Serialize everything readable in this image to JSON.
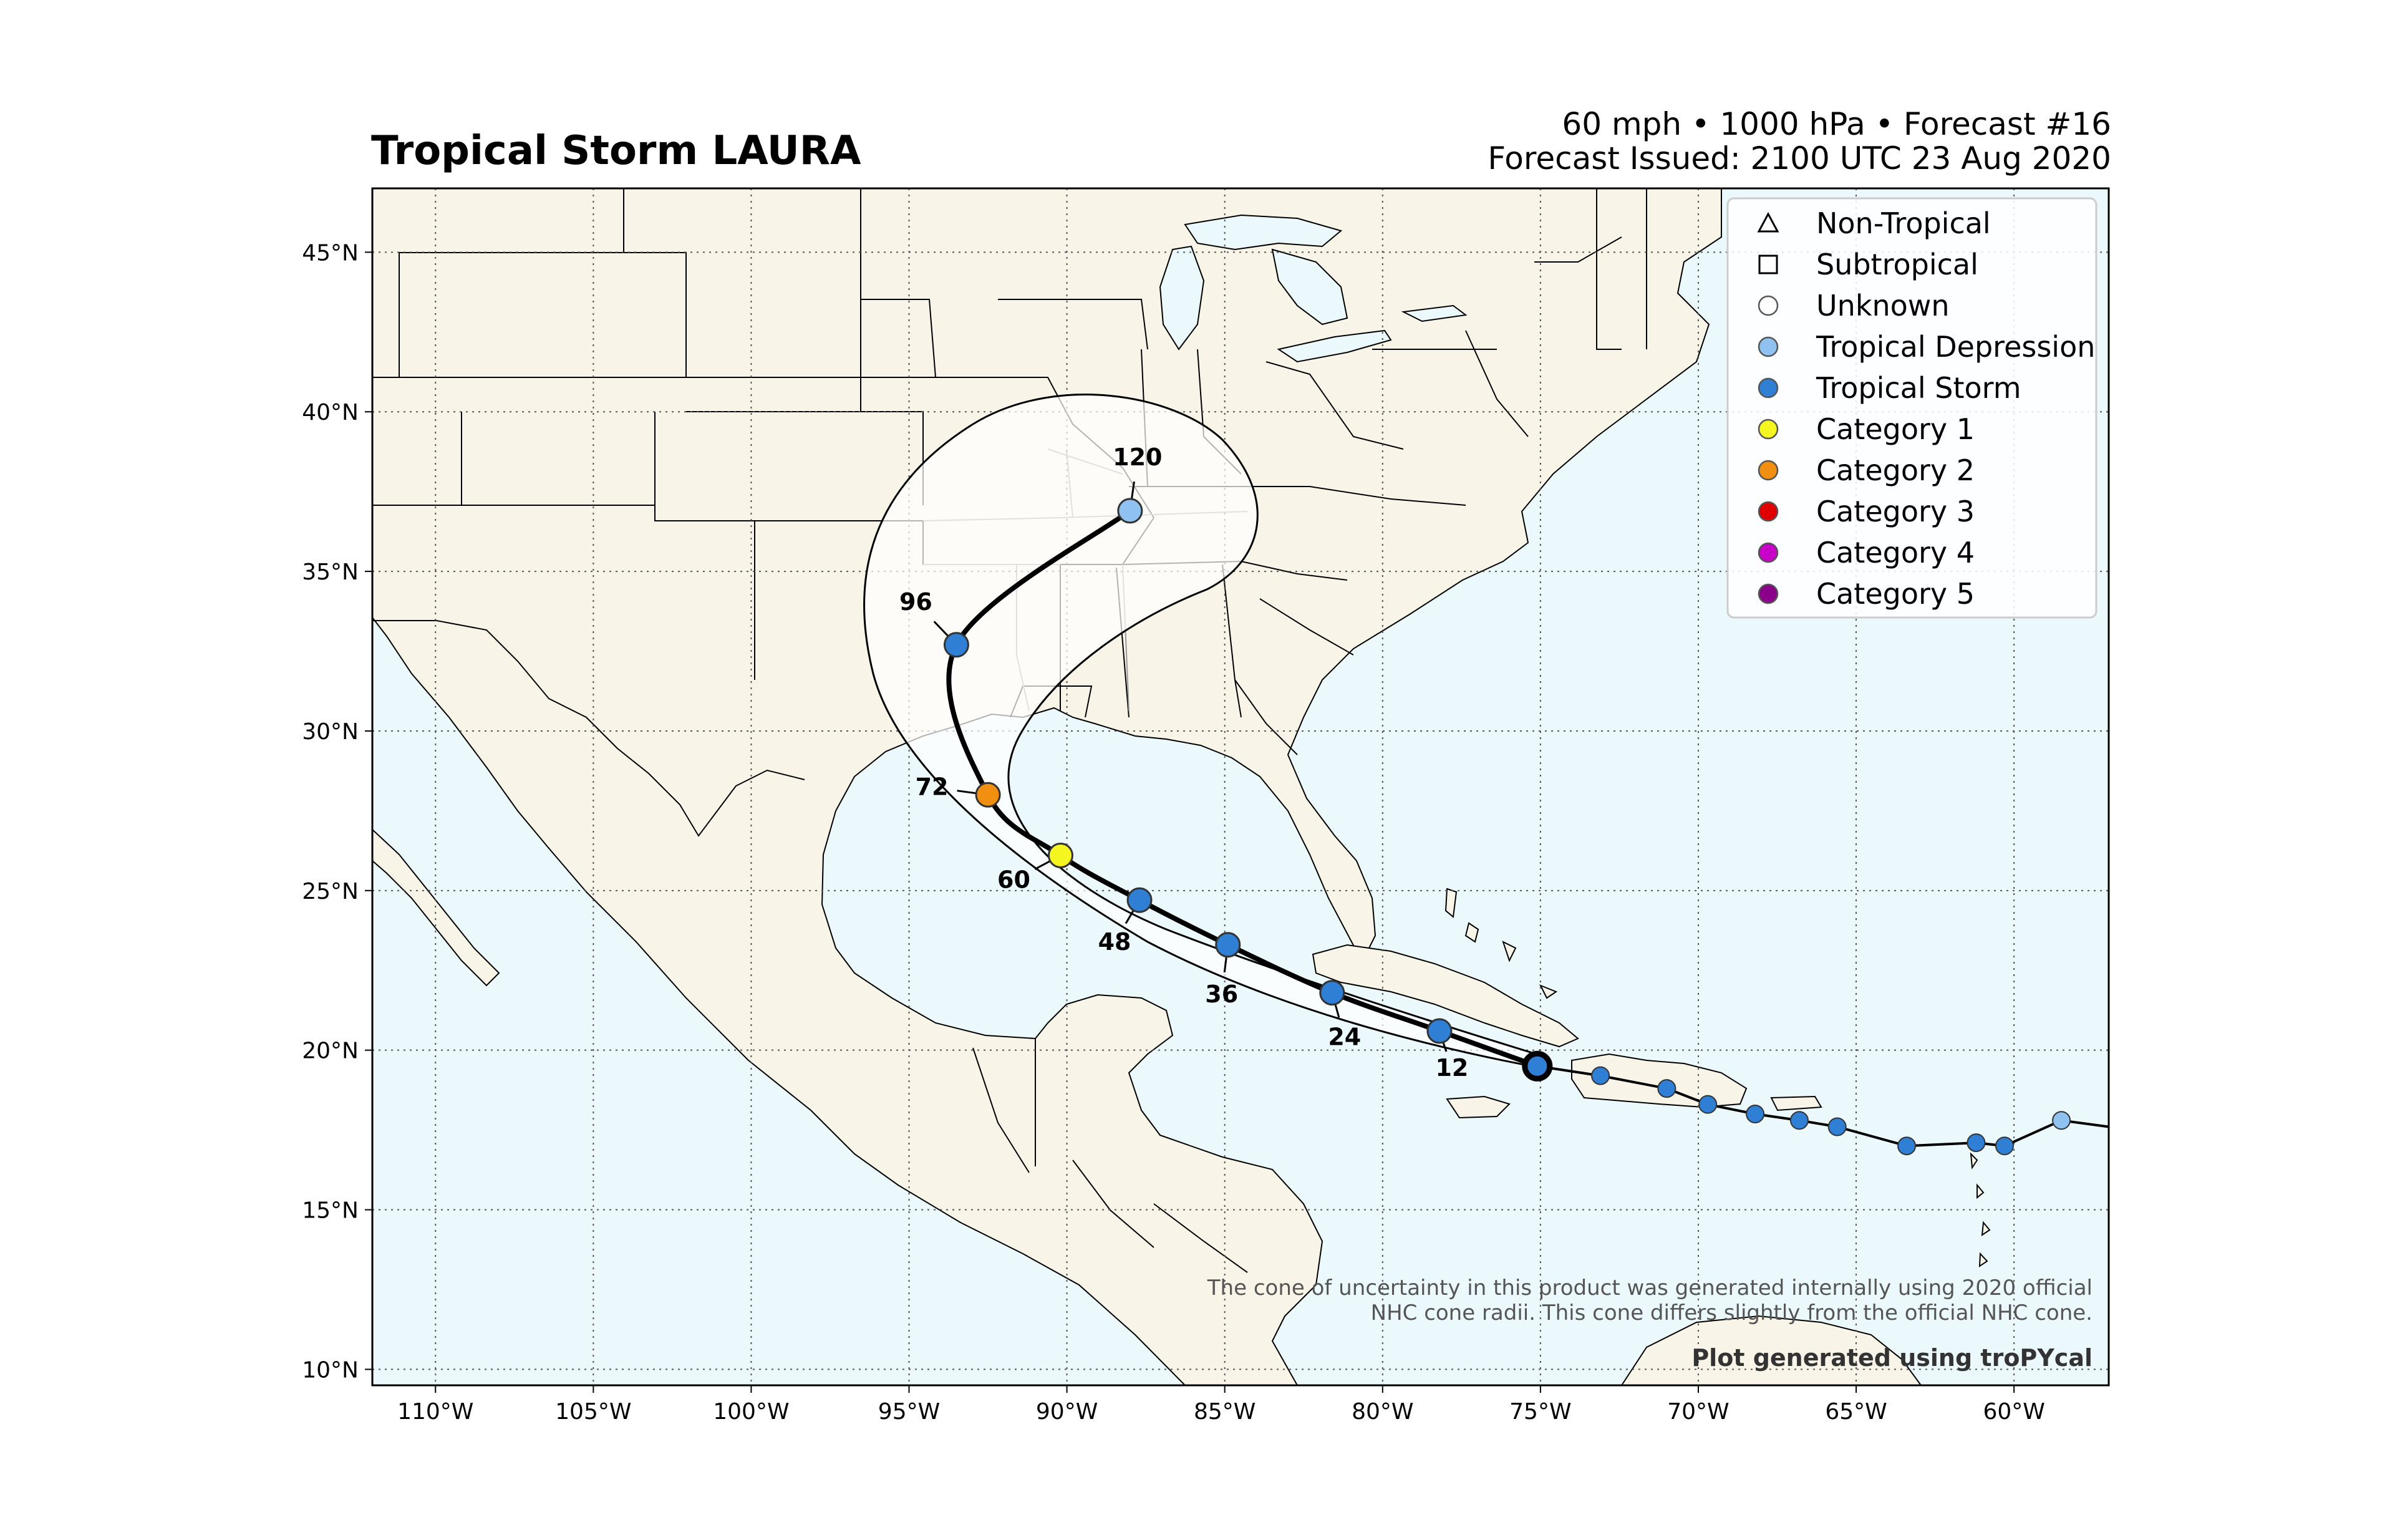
{
  "header": {
    "title": "Tropical Storm LAURA",
    "subtitle_line1": "60 mph • 1000 hPa • Forecast #16",
    "subtitle_line2": "Forecast Issued: 2100 UTC 23 Aug 2020"
  },
  "colors": {
    "land": "#f9f4e8",
    "ocean": "#ebf8fc",
    "tropical_depression": "#8fc2f0",
    "tropical_storm": "#2f7fd4",
    "category_1": "#f5f520",
    "category_2": "#f08f10",
    "category_3": "#e00000",
    "category_4": "#c800c8",
    "category_5": "#8b008b"
  },
  "chart_data": {
    "type": "map",
    "extent": {
      "lon": [
        -112,
        -57
      ],
      "lat": [
        9.5,
        47
      ]
    },
    "lat_ticks": [
      {
        "value": 45,
        "label": "45°N"
      },
      {
        "value": 40,
        "label": "40°N"
      },
      {
        "value": 35,
        "label": "35°N"
      },
      {
        "value": 30,
        "label": "30°N"
      },
      {
        "value": 25,
        "label": "25°N"
      },
      {
        "value": 20,
        "label": "20°N"
      },
      {
        "value": 15,
        "label": "15°N"
      },
      {
        "value": 10,
        "label": "10°N"
      }
    ],
    "lon_ticks": [
      {
        "value": -110,
        "label": "110°W"
      },
      {
        "value": -105,
        "label": "105°W"
      },
      {
        "value": -100,
        "label": "100°W"
      },
      {
        "value": -95,
        "label": "95°W"
      },
      {
        "value": -90,
        "label": "90°W"
      },
      {
        "value": -85,
        "label": "85°W"
      },
      {
        "value": -80,
        "label": "80°W"
      },
      {
        "value": -75,
        "label": "75°W"
      },
      {
        "value": -70,
        "label": "70°W"
      },
      {
        "value": -65,
        "label": "65°W"
      },
      {
        "value": -60,
        "label": "60°W"
      }
    ],
    "grid": true,
    "past_track": [
      {
        "lon": -57,
        "lat": 17.6,
        "category": "none"
      },
      {
        "lon": -58.5,
        "lat": 17.8,
        "category": "tropical_depression"
      },
      {
        "lon": -60.3,
        "lat": 17.0,
        "category": "tropical_storm"
      },
      {
        "lon": -61.2,
        "lat": 17.1,
        "category": "tropical_storm"
      },
      {
        "lon": -63.4,
        "lat": 17.0,
        "category": "tropical_storm"
      },
      {
        "lon": -65.6,
        "lat": 17.6,
        "category": "tropical_storm"
      },
      {
        "lon": -66.8,
        "lat": 17.8,
        "category": "tropical_storm"
      },
      {
        "lon": -68.2,
        "lat": 18.0,
        "category": "tropical_storm"
      },
      {
        "lon": -69.7,
        "lat": 18.3,
        "category": "tropical_storm"
      },
      {
        "lon": -71.0,
        "lat": 18.8,
        "category": "tropical_storm"
      },
      {
        "lon": -73.1,
        "lat": 19.2,
        "category": "tropical_storm"
      },
      {
        "lon": -75.1,
        "lat": 19.5,
        "category": "tropical_storm"
      }
    ],
    "current_position": {
      "lon": -75.1,
      "lat": 19.5,
      "category": "tropical_storm"
    },
    "forecast_points": [
      {
        "hour": "12",
        "lon": -78.2,
        "lat": 20.6,
        "category": "tropical_storm"
      },
      {
        "hour": "24",
        "lon": -81.6,
        "lat": 21.8,
        "category": "tropical_storm"
      },
      {
        "hour": "36",
        "lon": -84.9,
        "lat": 23.3,
        "category": "tropical_storm"
      },
      {
        "hour": "48",
        "lon": -87.7,
        "lat": 24.7,
        "category": "tropical_storm"
      },
      {
        "hour": "60",
        "lon": -90.2,
        "lat": 26.1,
        "category": "category_1"
      },
      {
        "hour": "72",
        "lon": -92.5,
        "lat": 28.0,
        "category": "category_2"
      },
      {
        "hour": "96",
        "lon": -93.5,
        "lat": 32.7,
        "category": "tropical_storm"
      },
      {
        "hour": "120",
        "lon": -88.0,
        "lat": 36.9,
        "category": "tropical_depression"
      }
    ],
    "legend": {
      "placement": "top-right",
      "entries": [
        {
          "label": "Non-Tropical",
          "marker": "triangle",
          "color": "#ffffff"
        },
        {
          "label": "Subtropical",
          "marker": "square",
          "color": "#ffffff"
        },
        {
          "label": "Unknown",
          "marker": "circle",
          "color": "#ffffff"
        },
        {
          "label": "Tropical Depression",
          "marker": "circle",
          "color": "#8fc2f0"
        },
        {
          "label": "Tropical Storm",
          "marker": "circle",
          "color": "#2f7fd4"
        },
        {
          "label": "Category 1",
          "marker": "circle",
          "color": "#f5f520"
        },
        {
          "label": "Category 2",
          "marker": "circle",
          "color": "#f08f10"
        },
        {
          "label": "Category 3",
          "marker": "circle",
          "color": "#e00000"
        },
        {
          "label": "Category 4",
          "marker": "circle",
          "color": "#c800c8"
        },
        {
          "label": "Category 5",
          "marker": "circle",
          "color": "#8b008b"
        }
      ]
    }
  },
  "footer": {
    "note_line1": "The cone of uncertainty in this product was generated internally using 2020 official",
    "note_line2": "NHC cone radii. This cone differs slightly from the official NHC cone.",
    "credit": "Plot generated using troPYcal"
  }
}
